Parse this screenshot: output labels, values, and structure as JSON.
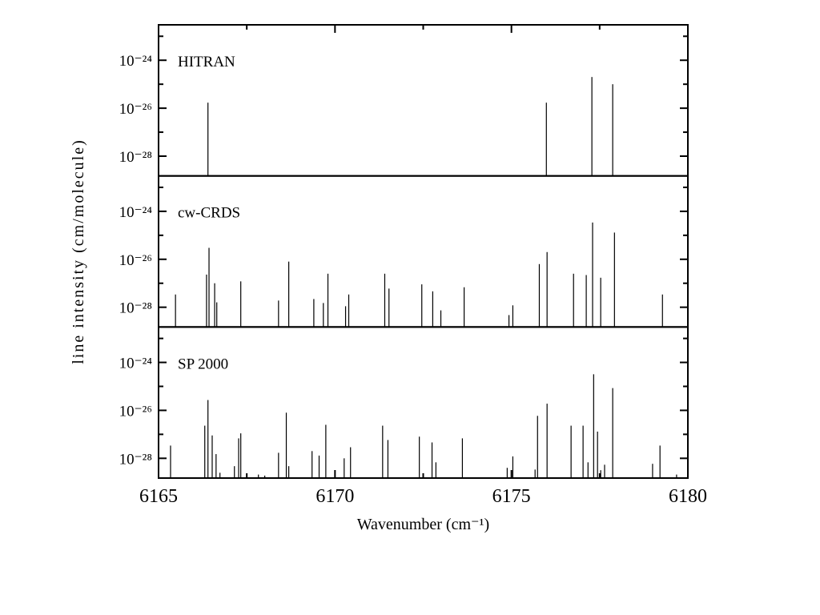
{
  "chart_data": [
    {
      "type": "stick",
      "annotation": "HITRAN",
      "log_y": true,
      "xlim": [
        6165,
        6180
      ],
      "ylim": [
        1.5e-29,
        3e-23
      ],
      "yticks": [
        {
          "value": 1e-24,
          "label": "10⁻²⁴"
        },
        {
          "value": 1e-26,
          "label": "10⁻²⁶"
        },
        {
          "value": 1e-28,
          "label": "10⁻²⁸"
        }
      ],
      "yminorticks": [
        1e-23,
        1e-25,
        1e-27
      ],
      "color": "#000000",
      "x": [
        6166.4,
        6175.99,
        6177.28,
        6177.87
      ],
      "values": [
        1.7e-26,
        1.7e-26,
        2e-25,
        1e-25
      ]
    },
    {
      "type": "stick",
      "annotation": "cw-CRDS",
      "log_y": true,
      "ylabel": "line intensity (cm/molecule)",
      "xlim": [
        6165,
        6180
      ],
      "ylim": [
        1.5e-29,
        3e-23
      ],
      "yticks": [
        {
          "value": 1e-24,
          "label": "10⁻²⁴"
        },
        {
          "value": 1e-26,
          "label": "10⁻²⁶"
        },
        {
          "value": 1e-28,
          "label": "10⁻²⁸"
        }
      ],
      "yminorticks": [
        1e-23,
        1e-25,
        1e-27
      ],
      "color": "#000000",
      "x": [
        6165.48,
        6166.36,
        6166.43,
        6166.59,
        6166.65,
        6167.33,
        6168.4,
        6168.69,
        6169.4,
        6169.67,
        6169.8,
        6170.3,
        6170.39,
        6171.41,
        6171.53,
        6172.46,
        6172.77,
        6173.0,
        6173.66,
        6174.93,
        6175.04,
        6175.79,
        6176.01,
        6176.76,
        6177.12,
        6177.3,
        6177.53,
        6177.92,
        6179.28
      ],
      "values": [
        3.4e-28,
        2.3e-27,
        3e-26,
        1e-27,
        1.6e-28,
        1.2e-27,
        1.9e-28,
        8e-27,
        2.2e-28,
        1.5e-28,
        2.5e-27,
        1.1e-28,
        3.4e-28,
        2.5e-27,
        6e-28,
        9e-28,
        4.6e-28,
        7.4e-29,
        6.8e-28,
        4.7e-29,
        1.2e-28,
        6.3e-27,
        2e-26,
        2.5e-27,
        2.2e-27,
        3.4e-25,
        1.7e-27,
        1.3e-25,
        3.4e-28
      ]
    },
    {
      "type": "stick",
      "annotation": "SP 2000",
      "log_y": true,
      "xlabel": "Wavenumber (cm⁻¹)",
      "xlim": [
        6165,
        6180
      ],
      "xticks": [
        6165,
        6170,
        6175,
        6180
      ],
      "xminorticks": [
        6167.5,
        6172.5,
        6177.5
      ],
      "ylim": [
        1.5e-29,
        3e-23
      ],
      "yticks": [
        {
          "value": 1e-24,
          "label": "10⁻²⁴"
        },
        {
          "value": 1e-26,
          "label": "10⁻²⁶"
        },
        {
          "value": 1e-28,
          "label": "10⁻²⁸"
        }
      ],
      "yminorticks": [
        1e-23,
        1e-25,
        1e-27
      ],
      "color": "#000000",
      "x": [
        6165.34,
        6166.31,
        6166.4,
        6166.52,
        6166.63,
        6166.74,
        6167.15,
        6167.27,
        6167.33,
        6167.83,
        6168.01,
        6168.4,
        6168.62,
        6168.69,
        6169.35,
        6169.55,
        6169.74,
        6170.26,
        6170.44,
        6171.35,
        6171.5,
        6172.39,
        6172.75,
        6172.86,
        6173.61,
        6174.88,
        6175.04,
        6175.67,
        6175.74,
        6176.01,
        6176.69,
        6177.03,
        6177.17,
        6177.33,
        6177.44,
        6177.53,
        6177.64,
        6177.87,
        6179.0,
        6179.21,
        6179.68
      ],
      "values": [
        3.4e-28,
        2.3e-27,
        2.7e-26,
        9e-28,
        1.5e-28,
        2.5e-29,
        4.7e-29,
        6.8e-28,
        1.1e-27,
        2.1e-29,
        1.9e-29,
        1.7e-28,
        8e-27,
        4.7e-29,
        2e-28,
        1.3e-28,
        2.5e-27,
        1e-28,
        2.9e-28,
        2.3e-27,
        5.8e-28,
        8e-28,
        4.6e-28,
        6.8e-29,
        6.8e-28,
        4e-29,
        1.2e-28,
        3.4e-29,
        5.9e-27,
        1.9e-26,
        2.3e-27,
        2.3e-27,
        6.8e-29,
        3.2e-25,
        1.3e-27,
        3.2e-29,
        5.4e-29,
        8.5e-26,
        5.9e-29,
        3.4e-28,
        2.1e-29
      ]
    }
  ]
}
